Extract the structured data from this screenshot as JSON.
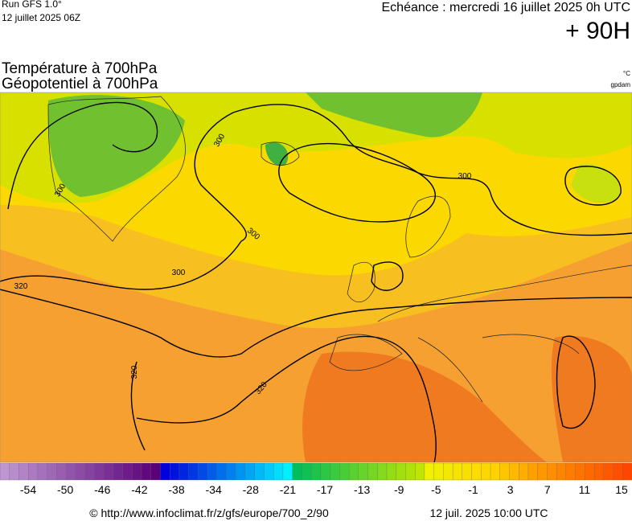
{
  "header": {
    "run": "Run GFS 1.0°",
    "run_date": "12 juillet 2025 06Z",
    "valid": "Echéance : mercredi 16 juillet 2025 0h UTC",
    "lead": "+ 90H",
    "title_1": "Température à 700hPa",
    "title_2": "Géopotentiel à 700hPa",
    "unit_temp": "°C",
    "unit_geo": "gpdam"
  },
  "map": {
    "contour_labels": [
      "300",
      "300",
      "300",
      "300",
      "300",
      "320",
      "320",
      "320"
    ]
  },
  "colorbar": {
    "labels": [
      -54,
      -50,
      -46,
      -42,
      -38,
      -34,
      -28,
      -21,
      -17,
      -13,
      -9,
      -5,
      -1,
      3,
      7,
      11,
      15
    ]
  },
  "footer": {
    "url": "© http://www.infoclimat.fr/z/gfs/europe/700_2/90",
    "timestamp": "12 juil. 2025 10:00 UTC"
  }
}
